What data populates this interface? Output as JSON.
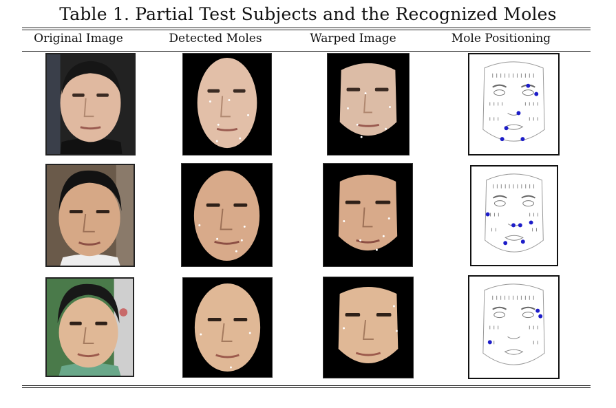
{
  "caption": "Table 1. Partial Test Subjects and the Recognized Moles",
  "columns": [
    "Original Image",
    "Detected Moles",
    "Warped Image",
    "Mole Positioning"
  ],
  "colors": {
    "rule": "#222222",
    "mole_marker": "#1d1dc8",
    "background_photo_1": "#1c1c1c",
    "background_photo_2": "#6a5a4a",
    "background_photo_3": "#4a7a4a"
  },
  "rows": [
    {
      "subject": "subject-1",
      "moles_detected": 6
    },
    {
      "subject": "subject-2",
      "moles_detected": 5
    },
    {
      "subject": "subject-3",
      "moles_detected": 3
    }
  ]
}
